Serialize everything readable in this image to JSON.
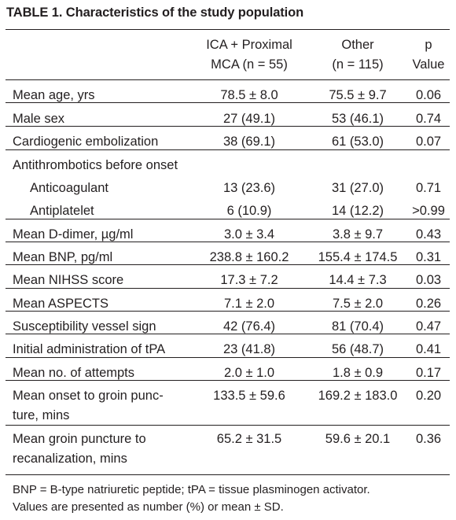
{
  "table": {
    "title": "TABLE 1. Characteristics of the study population",
    "headers": {
      "col2": [
        "ICA + Proximal",
        "MCA (n = 55)"
      ],
      "col3": [
        "Other",
        "(n = 115)"
      ],
      "col4": [
        "p",
        "Value"
      ]
    },
    "rows": [
      {
        "label": [
          "Mean age, yrs"
        ],
        "ica": "78.5 ± 8.0",
        "other": "75.5 ± 9.7",
        "p": "0.06"
      },
      {
        "label": [
          "Male sex"
        ],
        "ica": "27 (49.1)",
        "other": "53 (46.1)",
        "p": "0.74"
      },
      {
        "label": [
          "Cardiogenic embolization"
        ],
        "ica": "38 (69.1)",
        "other": "61 (53.0)",
        "p": "0.07"
      },
      {
        "label": [
          "Antithrombotics before onset"
        ],
        "ica": "",
        "other": "",
        "p": ""
      },
      {
        "label": [
          "Anticoagulant"
        ],
        "ica": "13 (23.6)",
        "other": "31 (27.0)",
        "p": "0.71",
        "indent": true
      },
      {
        "label": [
          "Antiplatelet"
        ],
        "ica": "6 (10.9)",
        "other": "14 (12.2)",
        "p": ">0.99",
        "indent": true
      },
      {
        "label": [
          "Mean D-dimer, µg/ml"
        ],
        "ica": "3.0 ± 3.4",
        "other": "3.8 ± 9.7",
        "p": "0.43"
      },
      {
        "label": [
          "Mean BNP, pg/ml"
        ],
        "ica": "238.8 ± 160.2",
        "other": "155.4 ± 174.5",
        "p": "0.31"
      },
      {
        "label": [
          "Mean NIHSS score"
        ],
        "ica": "17.3 ± 7.2",
        "other": "14.4 ± 7.3",
        "p": "0.03"
      },
      {
        "label": [
          "Mean ASPECTS"
        ],
        "ica": "7.1 ± 2.0",
        "other": "7.5 ± 2.0",
        "p": "0.26"
      },
      {
        "label": [
          "Susceptibility vessel sign"
        ],
        "ica": "42 (76.4)",
        "other": "81 (70.4)",
        "p": "0.47"
      },
      {
        "label": [
          "Initial administration of tPA"
        ],
        "ica": "23 (41.8)",
        "other": "56 (48.7)",
        "p": "0.41"
      },
      {
        "label": [
          "Mean no. of attempts"
        ],
        "ica": "2.0 ± 1.0",
        "other": "1.8 ± 0.9",
        "p": "0.17"
      },
      {
        "label": [
          "Mean onset to groin punc-",
          "ture, mins"
        ],
        "ica": "133.5 ± 59.6",
        "other": "169.2 ± 183.0",
        "p": "0.20"
      },
      {
        "label": [
          "Mean groin puncture to",
          "recanalization, mins"
        ],
        "ica": "65.2 ± 31.5",
        "other": "59.6 ± 20.1",
        "p": "0.36"
      }
    ],
    "footnotes": [
      "BNP = B-type natriuretic peptide; tPA = tissue plasminogen activator.",
      "Values are presented as number (%) or mean ± SD."
    ]
  }
}
